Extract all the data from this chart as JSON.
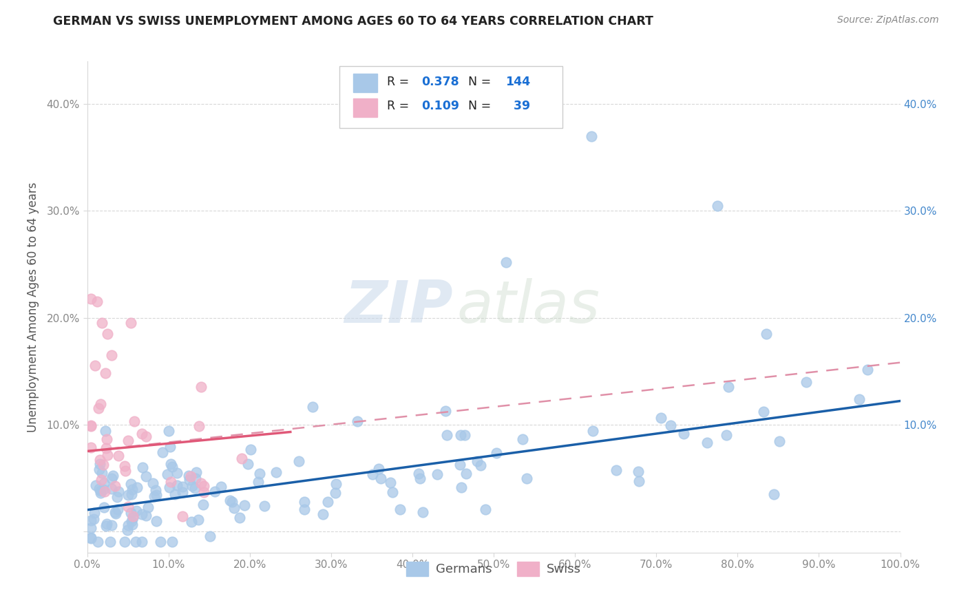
{
  "title": "GERMAN VS SWISS UNEMPLOYMENT AMONG AGES 60 TO 64 YEARS CORRELATION CHART",
  "source": "Source: ZipAtlas.com",
  "ylabel": "Unemployment Among Ages 60 to 64 years",
  "xlim": [
    0.0,
    1.0
  ],
  "ylim": [
    -0.02,
    0.44
  ],
  "x_ticks": [
    0.0,
    0.1,
    0.2,
    0.3,
    0.4,
    0.5,
    0.6,
    0.7,
    0.8,
    0.9,
    1.0
  ],
  "x_tick_labels": [
    "0.0%",
    "10.0%",
    "20.0%",
    "30.0%",
    "40.0%",
    "50.0%",
    "60.0%",
    "70.0%",
    "80.0%",
    "90.0%",
    "100.0%"
  ],
  "y_ticks": [
    0.0,
    0.1,
    0.2,
    0.3,
    0.4
  ],
  "y_tick_labels_left": [
    "",
    "10.0%",
    "20.0%",
    "30.0%",
    "40.0%"
  ],
  "y_tick_labels_right": [
    "",
    "10.0%",
    "20.0%",
    "30.0%",
    "40.0%"
  ],
  "watermark_zip": "ZIP",
  "watermark_atlas": "atlas",
  "german_color": "#a8c8e8",
  "swiss_color": "#f0b0c8",
  "german_line_color": "#1a5fa8",
  "swiss_line_color": "#e05878",
  "swiss_line_dash_color": "#e090a8",
  "legend_R_german": "0.378",
  "legend_N_german": "144",
  "legend_R_swiss": "0.109",
  "legend_N_swiss": "39",
  "legend_text_color": "#222222",
  "legend_num_color": "#1a6fd4",
  "background_color": "#ffffff",
  "grid_color": "#d8d8d8",
  "tick_color": "#888888",
  "title_color": "#222222",
  "source_color": "#888888",
  "ylabel_color": "#555555",
  "right_tick_color": "#4488cc"
}
